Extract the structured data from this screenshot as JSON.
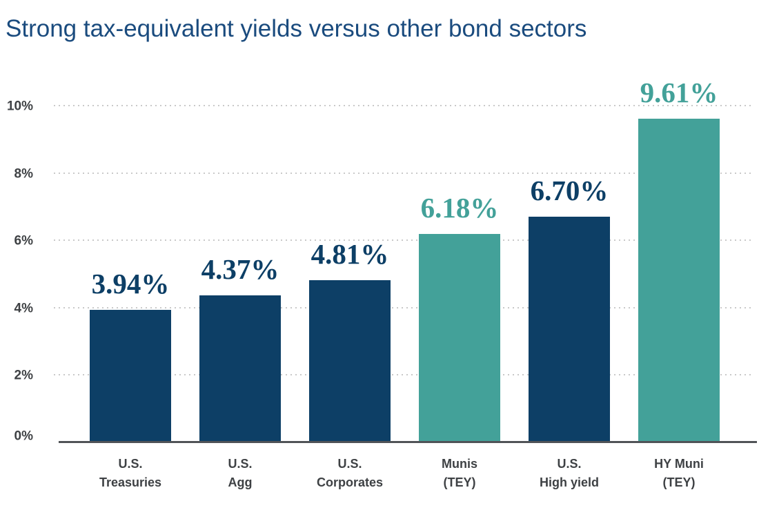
{
  "chart_data": {
    "type": "bar",
    "title": "Strong tax-equivalent yields versus other bond sectors",
    "categories": [
      "U.S. Treasuries",
      "U.S. Agg",
      "U.S. Corporates",
      "Munis (TEY)",
      "U.S. High yield",
      "HY Muni (TEY)"
    ],
    "category_lines": [
      [
        "U.S.",
        "Treasuries"
      ],
      [
        "U.S.",
        "Agg"
      ],
      [
        "U.S.",
        "Corporates"
      ],
      [
        "Munis",
        "(TEY)"
      ],
      [
        "U.S.",
        "High yield"
      ],
      [
        "HY Muni",
        "(TEY)"
      ]
    ],
    "values": [
      3.94,
      4.37,
      4.81,
      6.18,
      6.7,
      9.61
    ],
    "value_labels": [
      "3.94%",
      "4.37%",
      "4.81%",
      "6.18%",
      "6.70%",
      "9.61%"
    ],
    "bar_colors": [
      "#0d3f66",
      "#0d3f66",
      "#0d3f66",
      "#43a199",
      "#0d3f66",
      "#43a199"
    ],
    "label_colors": [
      "#0d3f66",
      "#0d3f66",
      "#0d3f66",
      "#43a199",
      "#0d3f66",
      "#43a199"
    ],
    "xlabel": "",
    "ylabel": "",
    "ylim": [
      0,
      10
    ],
    "yticks": [
      {
        "value": 0,
        "label": "0%"
      },
      {
        "value": 2,
        "label": "2%"
      },
      {
        "value": 4,
        "label": "4%"
      },
      {
        "value": 6,
        "label": "6%"
      },
      {
        "value": 8,
        "label": "8%"
      },
      {
        "value": 10,
        "label": "10%"
      }
    ],
    "grid": "horizontal dotted",
    "legend_position": "none",
    "colors": {
      "navy": "#0d3f66",
      "teal": "#43a199",
      "title_text": "#1a4b7e",
      "axis_text": "#3e4144",
      "axis_line": "#505357",
      "grid_dot": "#c9c9c9",
      "background": "#ffffff"
    }
  }
}
